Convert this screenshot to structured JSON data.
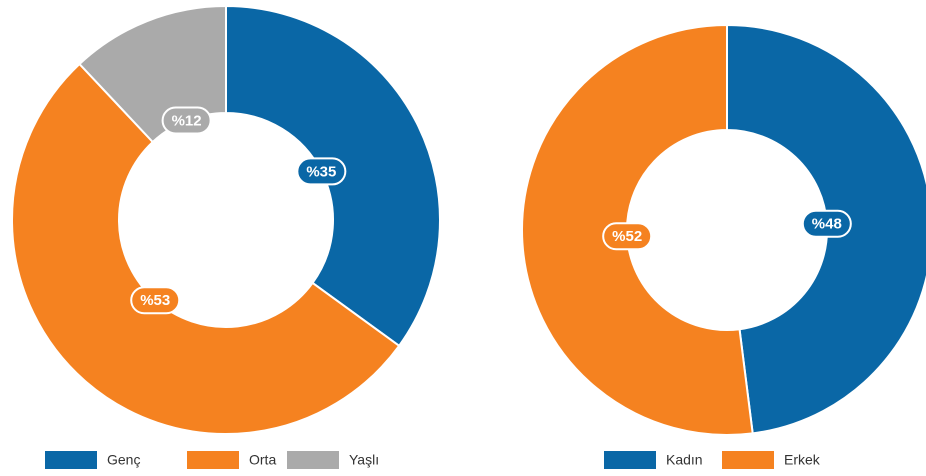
{
  "chart_data": [
    {
      "type": "donut",
      "categories": [
        "Genç",
        "Orta",
        "Yaşlı"
      ],
      "values": [
        35,
        53,
        12
      ],
      "value_labels": [
        "%35",
        "%53",
        "%12"
      ],
      "colors": [
        "#0a67a6",
        "#f58220",
        "#aaaaaa"
      ],
      "legend": "bottom"
    },
    {
      "type": "donut",
      "categories": [
        "Kadın",
        "Erkek"
      ],
      "values": [
        48,
        52
      ],
      "value_labels": [
        "%48",
        "%52"
      ],
      "colors": [
        "#0a67a6",
        "#f58220"
      ],
      "legend": "bottom"
    }
  ]
}
